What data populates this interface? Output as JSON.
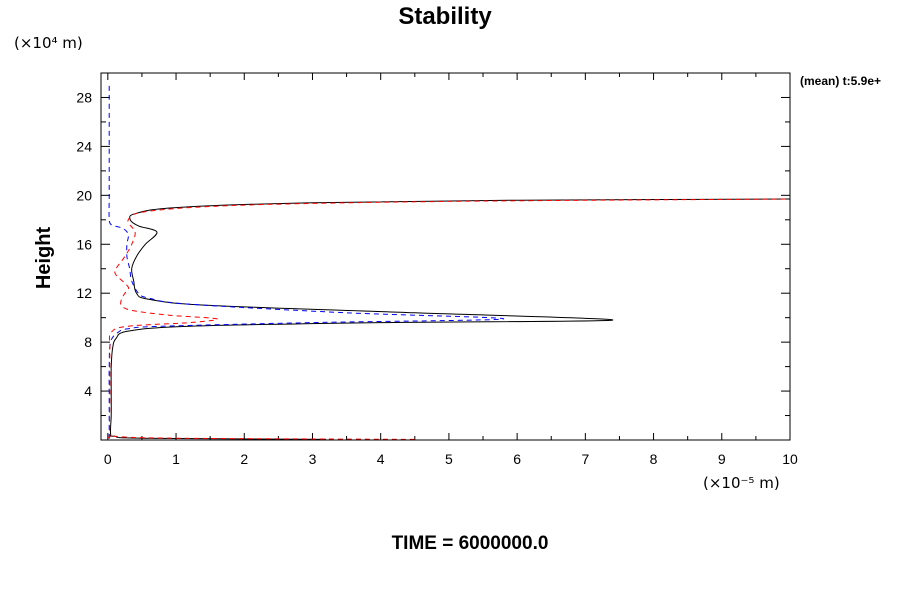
{
  "chart_data": {
    "type": "line",
    "title": "Stability",
    "ylabel": "Height",
    "xlabel": "",
    "y_unit": "(×10⁴ m)",
    "x_unit": "(×10⁻⁵ m)",
    "legend_text": "(mean) t:5.9e+",
    "footer": "TIME = 6000000.0",
    "xlim": [
      -0.1,
      10
    ],
    "ylim": [
      0,
      30
    ],
    "x_ticks": [
      0,
      1,
      2,
      3,
      4,
      5,
      6,
      7,
      8,
      9,
      10
    ],
    "y_ticks": [
      4,
      8,
      12,
      16,
      20,
      24,
      28
    ],
    "colors": {
      "axis": "#000000",
      "series1": "#000000",
      "series2": "#0000ff",
      "series3": "#ff0000"
    },
    "series": [
      {
        "name": "solid-black",
        "style": "solid",
        "points": [
          [
            3.2,
            0.05
          ],
          [
            0.5,
            0.15
          ],
          [
            0.1,
            0.3
          ],
          [
            0.04,
            0.5
          ],
          [
            0.05,
            2
          ],
          [
            0.05,
            4
          ],
          [
            0.05,
            6
          ],
          [
            0.07,
            7.5
          ],
          [
            0.12,
            8.3
          ],
          [
            0.3,
            8.9
          ],
          [
            1.2,
            9.3
          ],
          [
            4.0,
            9.6
          ],
          [
            7.4,
            9.8
          ],
          [
            4.5,
            10.4
          ],
          [
            1.5,
            11.0
          ],
          [
            0.6,
            11.5
          ],
          [
            0.42,
            12.0
          ],
          [
            0.38,
            13.0
          ],
          [
            0.35,
            14.0
          ],
          [
            0.42,
            15.0
          ],
          [
            0.55,
            16.0
          ],
          [
            0.72,
            17.0
          ],
          [
            0.45,
            17.5
          ],
          [
            0.33,
            18.0
          ],
          [
            0.4,
            18.5
          ],
          [
            1.0,
            19.0
          ],
          [
            3.0,
            19.4
          ],
          [
            6.0,
            19.6
          ],
          [
            10,
            19.7
          ]
        ]
      },
      {
        "name": "dashed-blue",
        "style": "dashed",
        "points": [
          [
            0.02,
            0.1
          ],
          [
            0.02,
            2
          ],
          [
            0.02,
            4
          ],
          [
            0.02,
            6
          ],
          [
            0.04,
            8
          ],
          [
            0.15,
            8.8
          ],
          [
            0.3,
            9.1
          ],
          [
            0.8,
            9.3
          ],
          [
            3.0,
            9.6
          ],
          [
            5.8,
            9.9
          ],
          [
            3.5,
            10.4
          ],
          [
            1.2,
            11.1
          ],
          [
            0.6,
            11.6
          ],
          [
            0.45,
            12.0
          ],
          [
            0.35,
            13.0
          ],
          [
            0.32,
            14.0
          ],
          [
            0.28,
            15.0
          ],
          [
            0.28,
            16.0
          ],
          [
            0.3,
            16.8
          ],
          [
            0.22,
            17.3
          ],
          [
            0.05,
            17.6
          ],
          [
            0.02,
            18.2
          ],
          [
            0.02,
            20
          ],
          [
            0.02,
            24
          ],
          [
            0.02,
            28
          ],
          [
            0.02,
            29
          ]
        ]
      },
      {
        "name": "dashed-red",
        "style": "dashed",
        "points": [
          [
            4.5,
            0.05
          ],
          [
            1.0,
            0.15
          ],
          [
            0.1,
            0.3
          ],
          [
            0.03,
            0.5
          ],
          [
            0.03,
            4
          ],
          [
            0.03,
            7.5
          ],
          [
            0.05,
            8.8
          ],
          [
            0.3,
            9.3
          ],
          [
            1.2,
            9.6
          ],
          [
            1.6,
            9.9
          ],
          [
            0.9,
            10.2
          ],
          [
            0.35,
            10.6
          ],
          [
            0.2,
            11.0
          ],
          [
            0.2,
            11.5
          ],
          [
            0.25,
            12.0
          ],
          [
            0.3,
            12.5
          ],
          [
            0.12,
            13.5
          ],
          [
            0.12,
            14.0
          ],
          [
            0.25,
            15.0
          ],
          [
            0.35,
            16.0
          ],
          [
            0.4,
            17.0
          ],
          [
            0.3,
            18.0
          ],
          [
            0.6,
            18.7
          ],
          [
            2.0,
            19.2
          ],
          [
            5.0,
            19.5
          ],
          [
            10,
            19.7
          ]
        ]
      }
    ]
  }
}
